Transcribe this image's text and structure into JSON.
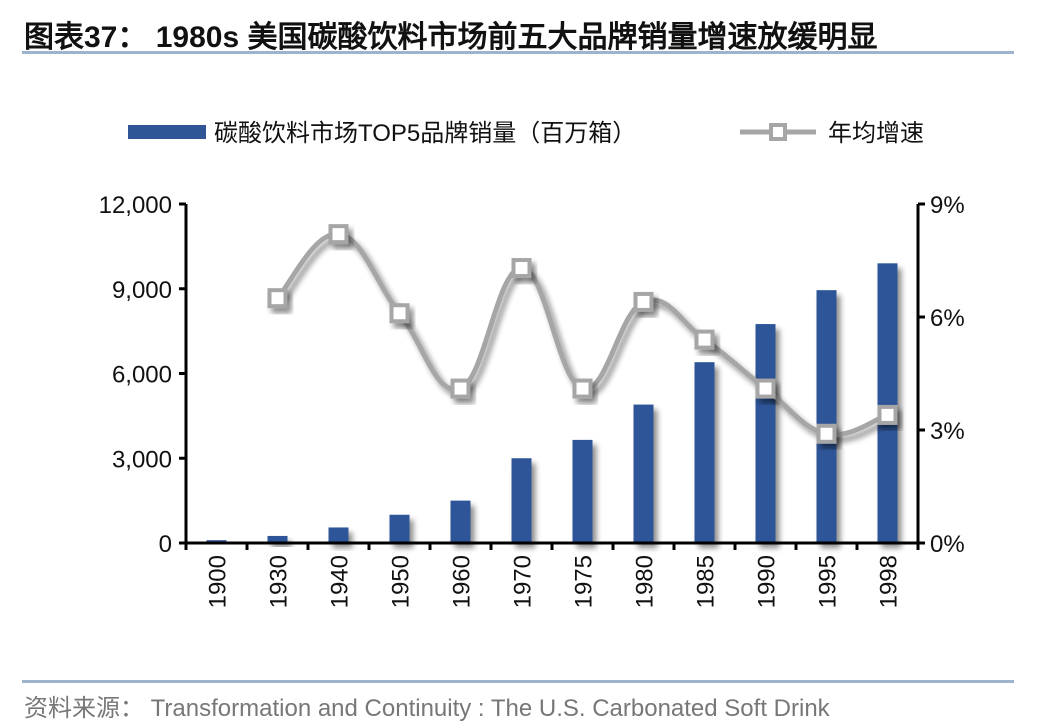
{
  "title": "图表37：  1980s 美国碳酸饮料市场前五大品牌销量增速放缓明显",
  "source": "资料来源： Transformation and Continuity : The U.S. Carbonated Soft Drink",
  "colors": {
    "bar": "#2f5597",
    "line": "#a6a6a6",
    "rule": "#9fb4cc"
  },
  "chart_data": {
    "type": "bar+line",
    "title": "1980s 美国碳酸饮料市场前五大品牌销量增速放缓明显",
    "categories": [
      "1900",
      "1930",
      "1940",
      "1950",
      "1960",
      "1970",
      "1975",
      "1980",
      "1985",
      "1990",
      "1995",
      "1998"
    ],
    "series": [
      {
        "name": "碳酸饮料市场TOP5品牌销量（百万箱）",
        "type": "bar",
        "axis": "left",
        "values": [
          100,
          250,
          550,
          1000,
          1500,
          3000,
          3650,
          4900,
          6400,
          7750,
          8950,
          9900
        ]
      },
      {
        "name": "年均增速",
        "type": "line",
        "axis": "right",
        "values": [
          null,
          6.5,
          8.2,
          6.1,
          4.1,
          7.3,
          4.1,
          6.4,
          5.4,
          4.1,
          2.9,
          3.4
        ]
      }
    ],
    "left_axis": {
      "ylim": [
        0,
        12000
      ],
      "ticks": [
        "0",
        "3,000",
        "6,000",
        "9,000",
        "12,000"
      ],
      "tick_values": [
        0,
        3000,
        6000,
        9000,
        12000
      ]
    },
    "right_axis": {
      "ylim": [
        0,
        9
      ],
      "ticks": [
        "0%",
        "3%",
        "6%",
        "9%"
      ],
      "tick_values": [
        0,
        3,
        6,
        9
      ],
      "unit": "%"
    },
    "xlabel": "",
    "ylabel": "",
    "grid": false,
    "legend_position": "top"
  }
}
